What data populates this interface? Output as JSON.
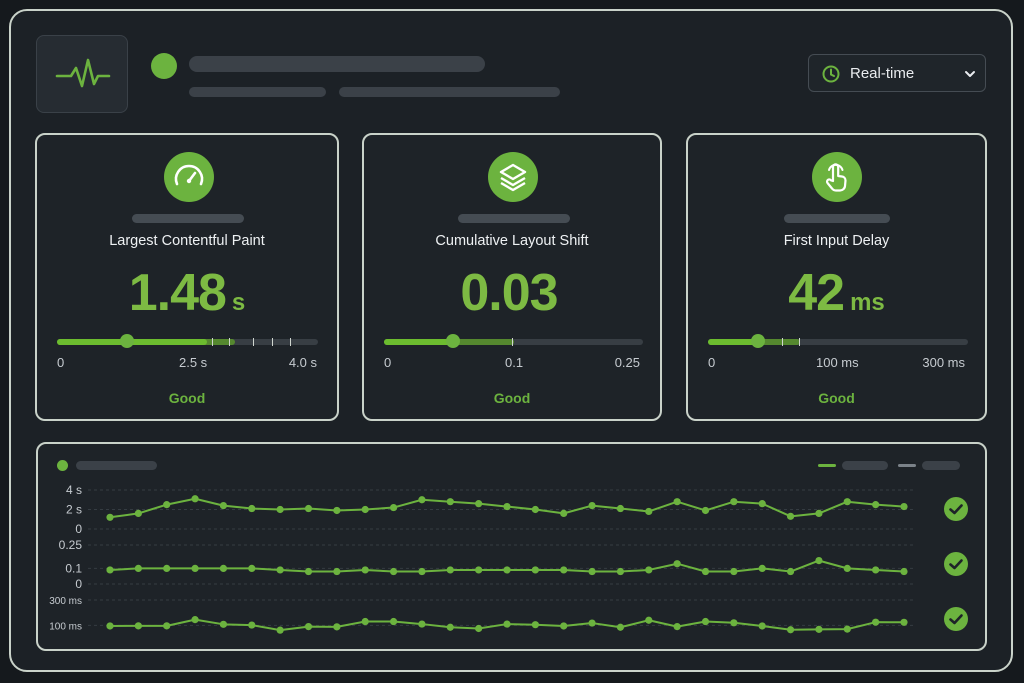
{
  "header": {
    "time_range": "Real-time",
    "icons": {
      "logo": "heartbeat-icon",
      "clock": "clock-icon",
      "dropdown": "chevron-down-icon"
    }
  },
  "metrics": [
    {
      "title": "Largest Contentful Paint",
      "value": "1.48",
      "unit": "s",
      "scale": [
        "0",
        "2.5 s",
        "4.0 s"
      ],
      "rating": "Good",
      "icon": "gauge-icon",
      "position": 0.26
    },
    {
      "title": "Cumulative Layout Shift",
      "value": "0.03",
      "unit": "",
      "scale": [
        "0",
        "0.1",
        "0.25"
      ],
      "rating": "Good",
      "icon": "layers-icon",
      "position": 0.26
    },
    {
      "title": "First Input Delay",
      "value": "42",
      "unit": "ms",
      "scale": [
        "0",
        "100 ms",
        "300 ms"
      ],
      "rating": "Good",
      "icon": "tap-icon",
      "position": 0.19
    }
  ],
  "colors": {
    "accent": "#6cb33f",
    "panel": "#1e2328",
    "background": "#15191d"
  },
  "trend": {
    "rows": [
      {
        "ticks": [
          "4 s",
          "2 s",
          "0"
        ],
        "values": [
          1.2,
          1.6,
          2.5,
          3.1,
          2.4,
          2.1,
          2.0,
          2.1,
          1.9,
          2.0,
          2.2,
          3.0,
          2.8,
          2.6,
          2.3,
          2.0,
          1.6,
          2.4,
          2.1,
          1.8,
          2.8,
          1.9,
          2.8,
          2.6,
          1.3,
          1.6,
          2.8,
          2.5,
          2.3
        ],
        "status": "check-icon"
      },
      {
        "ticks": [
          "0.25",
          "0.1",
          "0"
        ],
        "values": [
          0.09,
          0.1,
          0.1,
          0.1,
          0.1,
          0.1,
          0.09,
          0.08,
          0.08,
          0.09,
          0.08,
          0.08,
          0.09,
          0.09,
          0.09,
          0.09,
          0.09,
          0.08,
          0.08,
          0.09,
          0.13,
          0.08,
          0.08,
          0.1,
          0.08,
          0.15,
          0.1,
          0.09,
          0.08
        ],
        "status": "check-icon"
      },
      {
        "ticks": [
          "300 ms",
          "100 ms",
          "0"
        ],
        "values": [
          95,
          96,
          96,
          145,
          108,
          102,
          62,
          90,
          88,
          130,
          130,
          110,
          85,
          75,
          110,
          105,
          95,
          118,
          85,
          140,
          90,
          130,
          120,
          95,
          65,
          68,
          70,
          125,
          124
        ],
        "status": "check-icon"
      }
    ]
  }
}
